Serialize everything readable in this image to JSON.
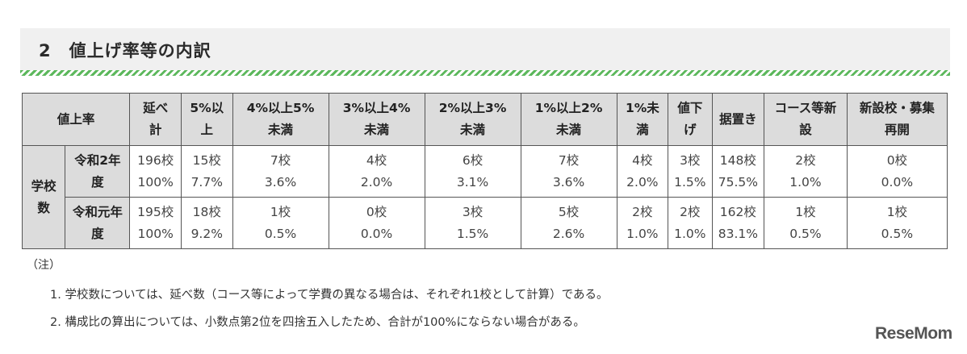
{
  "section_heading": "2　値上げ率等の内訳",
  "table": {
    "header_label": "値上率",
    "columns": [
      [
        "延べ",
        "計"
      ],
      [
        "5%以",
        "上"
      ],
      [
        "4%以上5%",
        "未満"
      ],
      [
        "3%以上4%",
        "未満"
      ],
      [
        "2%以上3%",
        "未満"
      ],
      [
        "1%以上2%",
        "未満"
      ],
      [
        "1%未",
        "満"
      ],
      [
        "値下",
        "げ"
      ],
      [
        "据置き",
        ""
      ],
      [
        "コース等新",
        "設"
      ],
      [
        "新設校・募集",
        "再開"
      ]
    ],
    "row_group": [
      "学校",
      "数"
    ],
    "rows": [
      {
        "label": [
          "令和2年",
          "度"
        ],
        "counts": [
          "196校",
          "15校",
          "7校",
          "4校",
          "6校",
          "7校",
          "4校",
          "3校",
          "148校",
          "2校",
          "0校"
        ],
        "ratios": [
          "100%",
          "7.7%",
          "3.6%",
          "2.0%",
          "3.1%",
          "3.6%",
          "2.0%",
          "1.5%",
          "75.5%",
          "1.0%",
          "0.0%"
        ]
      },
      {
        "label": [
          "令和元年",
          "度"
        ],
        "counts": [
          "195校",
          "18校",
          "1校",
          "0校",
          "3校",
          "5校",
          "2校",
          "2校",
          "162校",
          "1校",
          "1校"
        ],
        "ratios": [
          "100%",
          "9.2%",
          "0.5%",
          "0.0%",
          "1.5%",
          "2.6%",
          "1.0%",
          "1.0%",
          "83.1%",
          "0.5%",
          "0.5%"
        ]
      }
    ]
  },
  "notes": {
    "title": "（注）",
    "items": [
      "1. 学校数については、延べ数（コース等によって学費の異なる場合は、それぞれ1校として計算）である。",
      "2. 構成比の算出については、小数点第2位を四捨五入したため、合計が100%にならない場合がある。"
    ]
  },
  "logo": "ReseMom"
}
